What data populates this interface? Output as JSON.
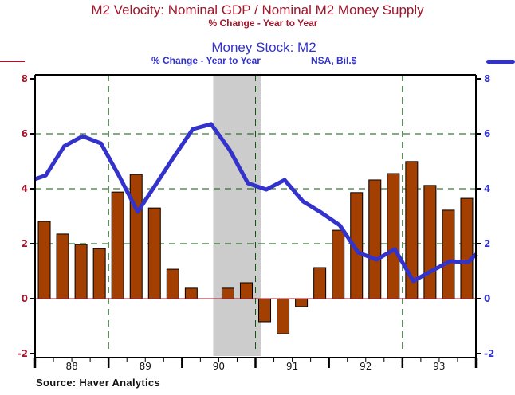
{
  "chart_data": {
    "type": "bar",
    "title": "M2 Velocity: Nominal GDP / Nominal M2 Money Supply",
    "subtitle": "% Change - Year to Year",
    "title2": "Money Stock: M2",
    "subtitle2": "% Change - Year to Year",
    "subtitle2_note": "NSA, Bil.$",
    "source": "Source: Haver Analytics",
    "xlabel": "",
    "ylabel": "",
    "ylim": [
      -2,
      8
    ],
    "yticks": [
      -2,
      0,
      2,
      4,
      6,
      8
    ],
    "ytick_labels_left": [
      "-2",
      "0",
      "2",
      "4",
      "6",
      "8"
    ],
    "ytick_labels_right": [
      "-2",
      "0",
      "2",
      "4",
      "6",
      "8"
    ],
    "year_labels": [
      "88",
      "89",
      "90",
      "91",
      "92",
      "93"
    ],
    "grid": "dashed",
    "recession_band": {
      "start_quarter_index": 10,
      "end_quarter_index": 12.6
    },
    "categories": [
      "88Q1",
      "88Q2",
      "88Q3",
      "88Q4",
      "89Q1",
      "89Q2",
      "89Q3",
      "89Q4",
      "90Q1",
      "90Q2",
      "90Q3",
      "90Q4",
      "91Q1",
      "91Q2",
      "91Q3",
      "91Q4",
      "92Q1",
      "92Q2",
      "92Q3",
      "92Q4",
      "93Q1",
      "93Q2",
      "93Q3",
      "93Q4"
    ],
    "series": [
      {
        "name": "M2 Velocity: Nominal GDP / Nominal M2 Money Supply (% Change - Year to Year)",
        "type": "bar",
        "axis": "left",
        "color": "#a33f00",
        "values": [
          2.81,
          2.35,
          1.97,
          1.82,
          3.88,
          4.52,
          3.3,
          1.07,
          0.38,
          0.0,
          0.38,
          0.58,
          -0.84,
          -1.28,
          -0.29,
          1.13,
          2.49,
          3.86,
          4.32,
          4.55,
          4.99,
          4.12,
          3.22,
          3.65
        ]
      },
      {
        "name": "Money Stock: M2 (% Change - Year to Year)",
        "type": "line",
        "axis": "right",
        "color": "#3333cc",
        "start_value": 4.35,
        "end_value": 1.62,
        "values": [
          4.49,
          5.55,
          5.91,
          5.65,
          4.45,
          3.16,
          4.17,
          5.19,
          6.17,
          6.35,
          5.42,
          4.2,
          3.97,
          4.32,
          3.54,
          3.13,
          2.67,
          1.68,
          1.42,
          1.8,
          0.64,
          1.01,
          1.36,
          1.33
        ]
      }
    ],
    "colors": {
      "left_axis": "#a0162b",
      "right_axis": "#3333cc",
      "grid": "#0a5a0a",
      "recession": "#cccccc",
      "zero_line": "#a0162b"
    }
  }
}
